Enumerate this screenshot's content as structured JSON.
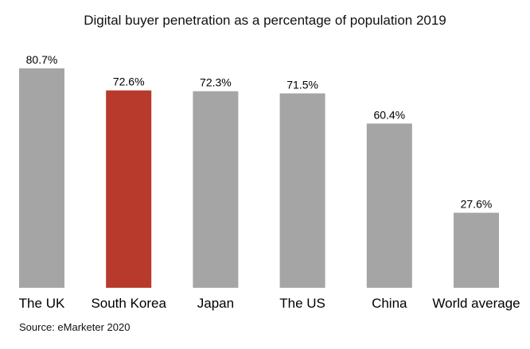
{
  "chart_data": {
    "type": "bar",
    "title": "Digital buyer penetration as a percentage of population 2019",
    "categories": [
      "The UK",
      "South Korea",
      "Japan",
      "The US",
      "China",
      "World average"
    ],
    "values": [
      80.7,
      72.6,
      72.3,
      71.5,
      60.4,
      27.6
    ],
    "data_labels": [
      "80.7%",
      "72.6%",
      "72.3%",
      "71.5%",
      "60.4%",
      "27.6%"
    ],
    "highlight": "South Korea",
    "colors": {
      "default": "#a5a5a5",
      "highlight": "#b83a2c"
    },
    "ylim": [
      0,
      100
    ],
    "grid": false,
    "source": "Source: eMarketer 2020"
  }
}
